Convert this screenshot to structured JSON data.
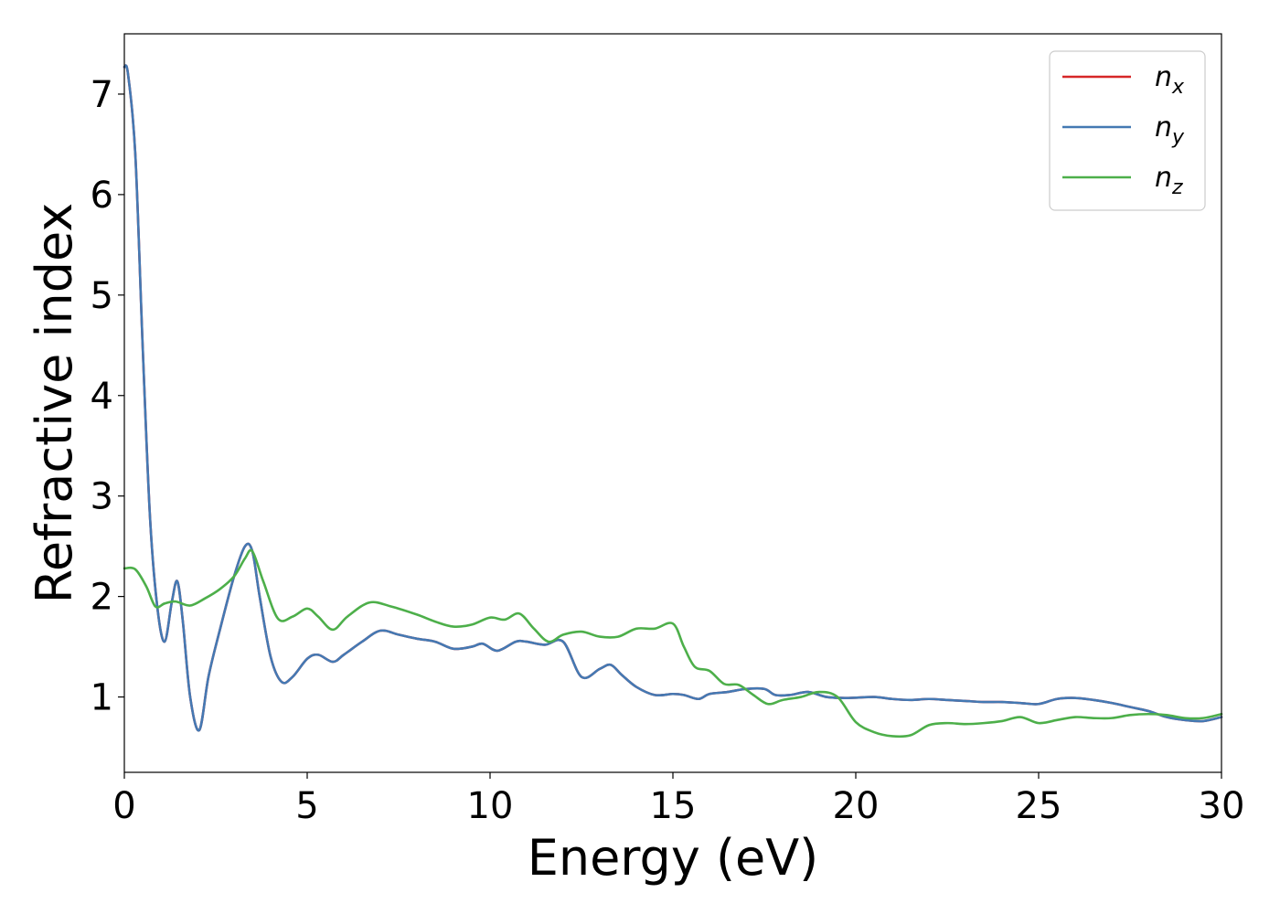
{
  "chart_data": {
    "type": "line",
    "title": "",
    "xlabel": "Energy (eV)",
    "ylabel": "Refractive index",
    "xlim": [
      0,
      30
    ],
    "ylim": [
      0.25,
      7.6
    ],
    "xticks": [
      0,
      5,
      10,
      15,
      20,
      25,
      30
    ],
    "yticks": [
      1,
      2,
      3,
      4,
      5,
      6,
      7
    ],
    "grid": false,
    "legend_position": "top-right",
    "series": [
      {
        "name": "n_x",
        "label_base": "n",
        "label_sub": "x",
        "color": "#d62728",
        "x": [
          0,
          0.1,
          0.3,
          0.5,
          0.7,
          0.9,
          1.1,
          1.3,
          1.45,
          1.6,
          1.8,
          2.05,
          2.3,
          2.6,
          3.0,
          3.3,
          3.5,
          3.7,
          4.0,
          4.3,
          4.6,
          5.0,
          5.3,
          5.7,
          6.0,
          6.5,
          7.0,
          7.5,
          8.0,
          8.5,
          9.0,
          9.5,
          9.8,
          10.2,
          10.7,
          11.0,
          11.5,
          12.0,
          12.5,
          13.0,
          13.3,
          13.6,
          14.0,
          14.5,
          15.0,
          15.3,
          15.7,
          16.0,
          16.5,
          17.0,
          17.5,
          17.8,
          18.2,
          18.7,
          19.2,
          19.8,
          20.5,
          21.0,
          21.5,
          22.0,
          22.5,
          23.0,
          23.5,
          24.0,
          24.5,
          25.0,
          25.5,
          26.0,
          26.5,
          27.0,
          27.5,
          28.0,
          28.5,
          29.0,
          29.5,
          30.0
        ],
        "y": [
          7.27,
          7.2,
          6.4,
          4.5,
          2.8,
          1.9,
          1.55,
          1.95,
          2.15,
          1.75,
          1.0,
          0.67,
          1.2,
          1.65,
          2.2,
          2.5,
          2.45,
          2.0,
          1.4,
          1.15,
          1.2,
          1.38,
          1.42,
          1.35,
          1.42,
          1.55,
          1.66,
          1.62,
          1.58,
          1.55,
          1.48,
          1.5,
          1.53,
          1.46,
          1.55,
          1.55,
          1.52,
          1.55,
          1.2,
          1.28,
          1.32,
          1.22,
          1.1,
          1.02,
          1.03,
          1.02,
          0.98,
          1.03,
          1.05,
          1.08,
          1.08,
          1.02,
          1.02,
          1.05,
          1.0,
          0.99,
          1.0,
          0.98,
          0.97,
          0.98,
          0.97,
          0.96,
          0.95,
          0.95,
          0.94,
          0.93,
          0.98,
          0.99,
          0.97,
          0.94,
          0.9,
          0.86,
          0.8,
          0.77,
          0.76,
          0.8
        ]
      },
      {
        "name": "n_y",
        "label_base": "n",
        "label_sub": "y",
        "color": "#4479b3",
        "x": [
          0,
          0.1,
          0.3,
          0.5,
          0.7,
          0.9,
          1.1,
          1.3,
          1.45,
          1.6,
          1.8,
          2.05,
          2.3,
          2.6,
          3.0,
          3.3,
          3.5,
          3.7,
          4.0,
          4.3,
          4.6,
          5.0,
          5.3,
          5.7,
          6.0,
          6.5,
          7.0,
          7.5,
          8.0,
          8.5,
          9.0,
          9.5,
          9.8,
          10.2,
          10.7,
          11.0,
          11.5,
          12.0,
          12.5,
          13.0,
          13.3,
          13.6,
          14.0,
          14.5,
          15.0,
          15.3,
          15.7,
          16.0,
          16.5,
          17.0,
          17.5,
          17.8,
          18.2,
          18.7,
          19.2,
          19.8,
          20.5,
          21.0,
          21.5,
          22.0,
          22.5,
          23.0,
          23.5,
          24.0,
          24.5,
          25.0,
          25.5,
          26.0,
          26.5,
          27.0,
          27.5,
          28.0,
          28.5,
          29.0,
          29.5,
          30.0
        ],
        "y": [
          7.27,
          7.2,
          6.4,
          4.5,
          2.8,
          1.9,
          1.55,
          1.95,
          2.15,
          1.75,
          1.0,
          0.67,
          1.2,
          1.65,
          2.2,
          2.5,
          2.45,
          2.0,
          1.4,
          1.15,
          1.2,
          1.38,
          1.42,
          1.35,
          1.42,
          1.55,
          1.66,
          1.62,
          1.58,
          1.55,
          1.48,
          1.5,
          1.53,
          1.46,
          1.55,
          1.55,
          1.52,
          1.55,
          1.2,
          1.28,
          1.32,
          1.22,
          1.1,
          1.02,
          1.03,
          1.02,
          0.98,
          1.03,
          1.05,
          1.08,
          1.08,
          1.02,
          1.02,
          1.05,
          1.0,
          0.99,
          1.0,
          0.98,
          0.97,
          0.98,
          0.97,
          0.96,
          0.95,
          0.95,
          0.94,
          0.93,
          0.98,
          0.99,
          0.97,
          0.94,
          0.9,
          0.86,
          0.8,
          0.77,
          0.76,
          0.8
        ]
      },
      {
        "name": "n_z",
        "label_base": "n",
        "label_sub": "z",
        "color": "#4daf4a",
        "x": [
          0,
          0.3,
          0.6,
          0.85,
          1.1,
          1.4,
          1.8,
          2.2,
          2.6,
          3.0,
          3.3,
          3.5,
          3.8,
          4.2,
          4.6,
          5.0,
          5.3,
          5.7,
          6.1,
          6.7,
          7.3,
          8.0,
          8.5,
          9.0,
          9.5,
          10.0,
          10.4,
          10.8,
          11.2,
          11.6,
          12.0,
          12.5,
          13.0,
          13.5,
          14.0,
          14.5,
          15.0,
          15.3,
          15.6,
          16.0,
          16.4,
          16.8,
          17.2,
          17.6,
          18.0,
          18.5,
          19.0,
          19.5,
          20.0,
          20.5,
          21.0,
          21.5,
          22.0,
          22.5,
          23.0,
          23.5,
          24.0,
          24.5,
          25.0,
          25.5,
          26.0,
          26.5,
          27.0,
          27.5,
          28.0,
          28.5,
          29.0,
          29.5,
          30.0
        ],
        "y": [
          2.28,
          2.27,
          2.1,
          1.9,
          1.93,
          1.95,
          1.91,
          1.98,
          2.07,
          2.2,
          2.38,
          2.45,
          2.15,
          1.78,
          1.8,
          1.88,
          1.8,
          1.67,
          1.8,
          1.94,
          1.9,
          1.82,
          1.75,
          1.7,
          1.72,
          1.79,
          1.77,
          1.83,
          1.68,
          1.55,
          1.62,
          1.65,
          1.6,
          1.6,
          1.68,
          1.68,
          1.73,
          1.5,
          1.3,
          1.26,
          1.13,
          1.12,
          1.02,
          0.93,
          0.97,
          1.0,
          1.05,
          1.0,
          0.75,
          0.65,
          0.61,
          0.62,
          0.72,
          0.74,
          0.73,
          0.74,
          0.76,
          0.8,
          0.74,
          0.77,
          0.8,
          0.79,
          0.79,
          0.82,
          0.83,
          0.82,
          0.79,
          0.79,
          0.83
        ]
      }
    ]
  }
}
